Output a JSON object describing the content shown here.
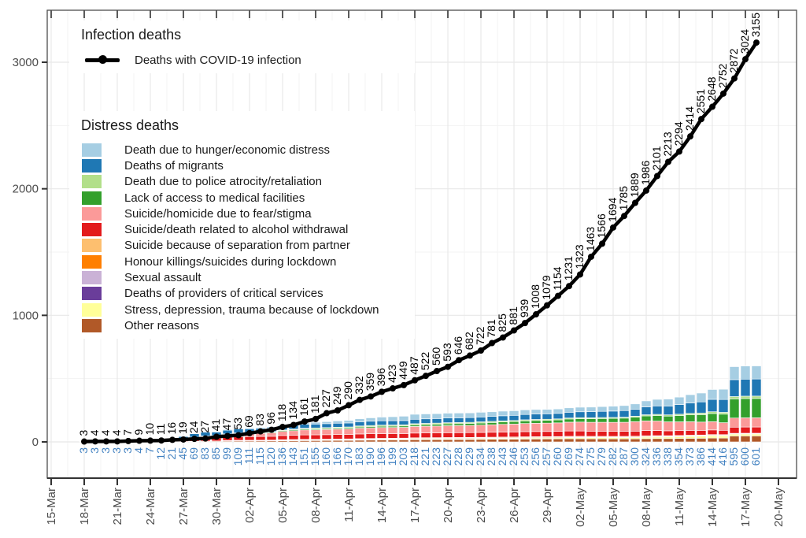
{
  "legends": {
    "infection": {
      "title": "Infection deaths",
      "item": "Deaths with COVID-19 infection"
    },
    "distress": {
      "title": "Distress deaths"
    }
  },
  "chart_data": {
    "type": "bar+line",
    "title": "",
    "xlabel": "",
    "ylabel": "",
    "ylim": [
      -290,
      3410
    ],
    "grid": "on",
    "legend_position": "top-left-inside",
    "y_ticks": [
      0,
      1000,
      2000,
      3000
    ],
    "y_minor_ticks": [
      500,
      1500,
      2500
    ],
    "x_tick_labels": [
      "15-Mar",
      "18-Mar",
      "21-Mar",
      "24-Mar",
      "27-Mar",
      "30-Mar",
      "02-Apr",
      "05-Apr",
      "08-Apr",
      "11-Apr",
      "14-Apr",
      "17-Apr",
      "20-Apr",
      "23-Apr",
      "26-Apr",
      "29-Apr",
      "02-May",
      "05-May",
      "08-May",
      "11-May",
      "14-May",
      "17-May",
      "20-May"
    ],
    "dates": [
      "18-Mar",
      "19-Mar",
      "20-Mar",
      "21-Mar",
      "22-Mar",
      "23-Mar",
      "24-Mar",
      "25-Mar",
      "26-Mar",
      "27-Mar",
      "28-Mar",
      "29-Mar",
      "30-Mar",
      "31-Mar",
      "01-Apr",
      "02-Apr",
      "03-Apr",
      "04-Apr",
      "05-Apr",
      "06-Apr",
      "07-Apr",
      "08-Apr",
      "09-Apr",
      "10-Apr",
      "11-Apr",
      "12-Apr",
      "13-Apr",
      "14-Apr",
      "15-Apr",
      "16-Apr",
      "17-Apr",
      "18-Apr",
      "19-Apr",
      "20-Apr",
      "21-Apr",
      "22-Apr",
      "23-Apr",
      "24-Apr",
      "25-Apr",
      "26-Apr",
      "27-Apr",
      "28-Apr",
      "29-Apr",
      "30-Apr",
      "01-May",
      "02-May",
      "03-May",
      "04-May",
      "05-May",
      "06-May",
      "07-May",
      "08-May",
      "09-May",
      "10-May",
      "11-May",
      "12-May",
      "13-May",
      "14-May",
      "15-May",
      "16-May",
      "17-May",
      "18-May"
    ],
    "series": [
      {
        "name": "Deaths with COVID-19 infection",
        "kind": "line",
        "color": "#000000",
        "label_color": "#000000",
        "values": [
          3,
          4,
          4,
          4,
          7,
          9,
          10,
          11,
          16,
          19,
          24,
          27,
          41,
          47,
          53,
          69,
          83,
          96,
          118,
          134,
          161,
          181,
          227,
          249,
          290,
          332,
          359,
          396,
          423,
          449,
          487,
          522,
          560,
          593,
          646,
          682,
          722,
          781,
          825,
          881,
          939,
          1008,
          1079,
          1154,
          1231,
          1323,
          1463,
          1566,
          1694,
          1785,
          1889,
          1986,
          2101,
          2213,
          2294,
          2414,
          2551,
          2648,
          2752,
          2872,
          3024,
          3155
        ]
      },
      {
        "name": "Distress deaths (total, stacked bars)",
        "kind": "stacked-bar",
        "label_color": "#4181c1",
        "values": [
          3,
          3,
          3,
          3,
          3,
          4,
          7,
          12,
          21,
          45,
          69,
          83,
          85,
          99,
          109,
          111,
          115,
          120,
          136,
          143,
          151,
          155,
          160,
          166,
          170,
          183,
          190,
          196,
          199,
          203,
          218,
          221,
          223,
          227,
          228,
          229,
          234,
          238,
          243,
          246,
          253,
          256,
          257,
          260,
          269,
          274,
          275,
          279,
          282,
          287,
          300,
          324,
          336,
          338,
          354,
          373,
          386,
          414,
          416,
          595,
          600,
          601
        ]
      }
    ],
    "categories": [
      {
        "label": "Death due to hunger/economic distress",
        "color": "#a6cee3"
      },
      {
        "label": "Deaths of migrants",
        "color": "#1f78b4"
      },
      {
        "label": "Death due to police atrocity/retaliation",
        "color": "#b2df8a"
      },
      {
        "label": "Lack of access to medical facilities",
        "color": "#33a02c"
      },
      {
        "label": "Suicide/homicide due to fear/stigma",
        "color": "#fb9a99"
      },
      {
        "label": "Suicide/death related to alcohol withdrawal",
        "color": "#e31a1c"
      },
      {
        "label": "Suicide because of separation from partner",
        "color": "#fdbf6f"
      },
      {
        "label": "Honour killings/suicides during lockdown",
        "color": "#ff7f00"
      },
      {
        "label": "Sexual assault",
        "color": "#cab2d6"
      },
      {
        "label": "Deaths of providers of critical services",
        "color": "#6a3d9a"
      },
      {
        "label": "Stress, depression, trauma because of lockdown",
        "color": "#ffff99"
      },
      {
        "label": "Other reasons",
        "color": "#b15928"
      }
    ],
    "stack_fraction_keyframes": [
      {
        "i": 0,
        "f": [
          0.0,
          0.6,
          0.0,
          0.0,
          0.02,
          0.33,
          0.0,
          0.0,
          0.0,
          0.0,
          0.0,
          0.05
        ]
      },
      {
        "i": 7,
        "f": [
          0.02,
          0.5,
          0.01,
          0.03,
          0.07,
          0.3,
          0.005,
          0.02,
          0.002,
          0.008,
          0.005,
          0.05
        ]
      },
      {
        "i": 9,
        "f": [
          0.04,
          0.42,
          0.02,
          0.04,
          0.1,
          0.3,
          0.005,
          0.02,
          0.002,
          0.01,
          0.005,
          0.05
        ]
      },
      {
        "i": 13,
        "f": [
          0.06,
          0.3,
          0.03,
          0.05,
          0.18,
          0.27,
          0.01,
          0.025,
          0.004,
          0.008,
          0.008,
          0.065
        ]
      },
      {
        "i": 20,
        "f": [
          0.08,
          0.2,
          0.04,
          0.05,
          0.26,
          0.23,
          0.013,
          0.026,
          0.007,
          0.007,
          0.013,
          0.066
        ]
      },
      {
        "i": 30,
        "f": [
          0.18,
          0.16,
          0.046,
          0.055,
          0.24,
          0.17,
          0.014,
          0.023,
          0.005,
          0.005,
          0.023,
          0.079
        ]
      },
      {
        "i": 44,
        "f": [
          0.13,
          0.167,
          0.03,
          0.093,
          0.26,
          0.156,
          0.011,
          0.019,
          0.004,
          0.007,
          0.03,
          0.093
        ]
      },
      {
        "i": 50,
        "f": [
          0.14,
          0.183,
          0.027,
          0.117,
          0.25,
          0.133,
          0.01,
          0.017,
          0.003,
          0.007,
          0.033,
          0.08
        ]
      },
      {
        "i": 58,
        "f": [
          0.2,
          0.25,
          0.036,
          0.166,
          0.149,
          0.084,
          0.007,
          0.012,
          0.002,
          0.005,
          0.041,
          0.075
        ]
      },
      {
        "i": 59,
        "f": [
          0.175,
          0.228,
          0.032,
          0.258,
          0.123,
          0.083,
          0.003,
          0.005,
          0.001,
          0.003,
          0.025,
          0.08
        ]
      },
      {
        "i": 61,
        "f": [
          0.175,
          0.228,
          0.032,
          0.258,
          0.123,
          0.083,
          0.003,
          0.005,
          0.001,
          0.003,
          0.025,
          0.08
        ]
      }
    ],
    "style_colors": {
      "axis_text": "#4d4d4d",
      "axis_line": "#333333",
      "panel_border": "#4d4d4d",
      "grid_major": "#e8e8e8",
      "grid_minor": "#f3f3f3",
      "bar_label": "#4181c1",
      "line_label": "#000000"
    }
  }
}
